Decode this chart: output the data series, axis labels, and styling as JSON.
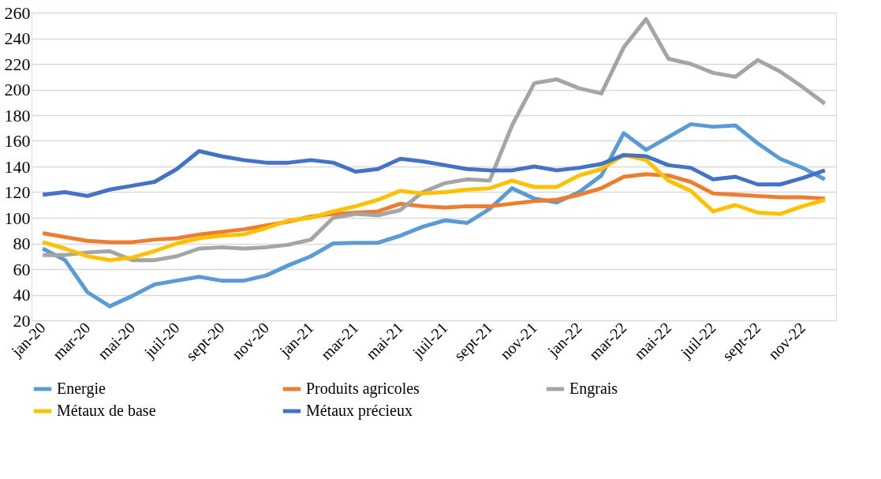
{
  "chart_data": {
    "type": "line",
    "categories": [
      "jan-20",
      null,
      "mar-20",
      null,
      "mai-20",
      null,
      "juil-20",
      null,
      "sept-20",
      null,
      "nov-20",
      null,
      "jan-21",
      null,
      "mar-21",
      null,
      "mai-21",
      null,
      "juil-21",
      null,
      "sept-21",
      null,
      "nov-21",
      null,
      "jan-22",
      null,
      "mar-22",
      null,
      "mai-22",
      null,
      "juil-22",
      null,
      "sept-22",
      null,
      "nov-22",
      null
    ],
    "series": [
      {
        "name": "Energie",
        "color": "#5b9bd5",
        "values": [
          76,
          67,
          42,
          31,
          39,
          48,
          51,
          54,
          51,
          51,
          55,
          63,
          70,
          80,
          80.5,
          80.5,
          86,
          93,
          98,
          96,
          107,
          123,
          115,
          112,
          120,
          133,
          166,
          153,
          163,
          173,
          171,
          172,
          158,
          146,
          139,
          130
        ]
      },
      {
        "name": "Produits agricoles",
        "color": "#ed7d31",
        "values": [
          88,
          85,
          82,
          81,
          81,
          83,
          84,
          87,
          89,
          91,
          94,
          97,
          101,
          103,
          104,
          105,
          111,
          109,
          108,
          109,
          109,
          111,
          113,
          114,
          118,
          123,
          132,
          134,
          133,
          128,
          119,
          118,
          117,
          116,
          116,
          115
        ]
      },
      {
        "name": "Engrais",
        "color": "#a5a5a5",
        "values": [
          71,
          71,
          73,
          74,
          67,
          67,
          70,
          76,
          77,
          76,
          77,
          79,
          83,
          100,
          103,
          102,
          106,
          120,
          127,
          130,
          129,
          172,
          205,
          208,
          201,
          197,
          233,
          255,
          224,
          220,
          213,
          210,
          223,
          214,
          202,
          189
        ]
      },
      {
        "name": "Métaux de base",
        "color": "#ffc000",
        "values": [
          81,
          76,
          70,
          67,
          69,
          74,
          80,
          84,
          86,
          87,
          92,
          98,
          100,
          105,
          109,
          114,
          121,
          119,
          120,
          122,
          123,
          129,
          124,
          124,
          133,
          138,
          149,
          145,
          129,
          121,
          105,
          110,
          104,
          103,
          109,
          114
        ]
      },
      {
        "name": "Métaux précieux",
        "color": "#4472c4",
        "values": [
          118,
          120,
          117,
          122,
          125,
          128,
          138,
          152,
          148,
          145,
          143,
          143,
          145,
          143,
          136,
          138,
          146,
          144,
          141,
          138,
          137,
          137,
          140,
          137,
          139,
          142,
          149,
          148,
          141,
          139,
          130,
          132,
          126,
          126,
          131,
          137
        ]
      }
    ],
    "ylim": [
      20,
      260
    ],
    "yticks": [
      20,
      40,
      60,
      80,
      100,
      120,
      140,
      160,
      180,
      200,
      220,
      240,
      260
    ],
    "grid": "y",
    "legend": "bottom",
    "marker": "none",
    "line_style": "solid"
  }
}
